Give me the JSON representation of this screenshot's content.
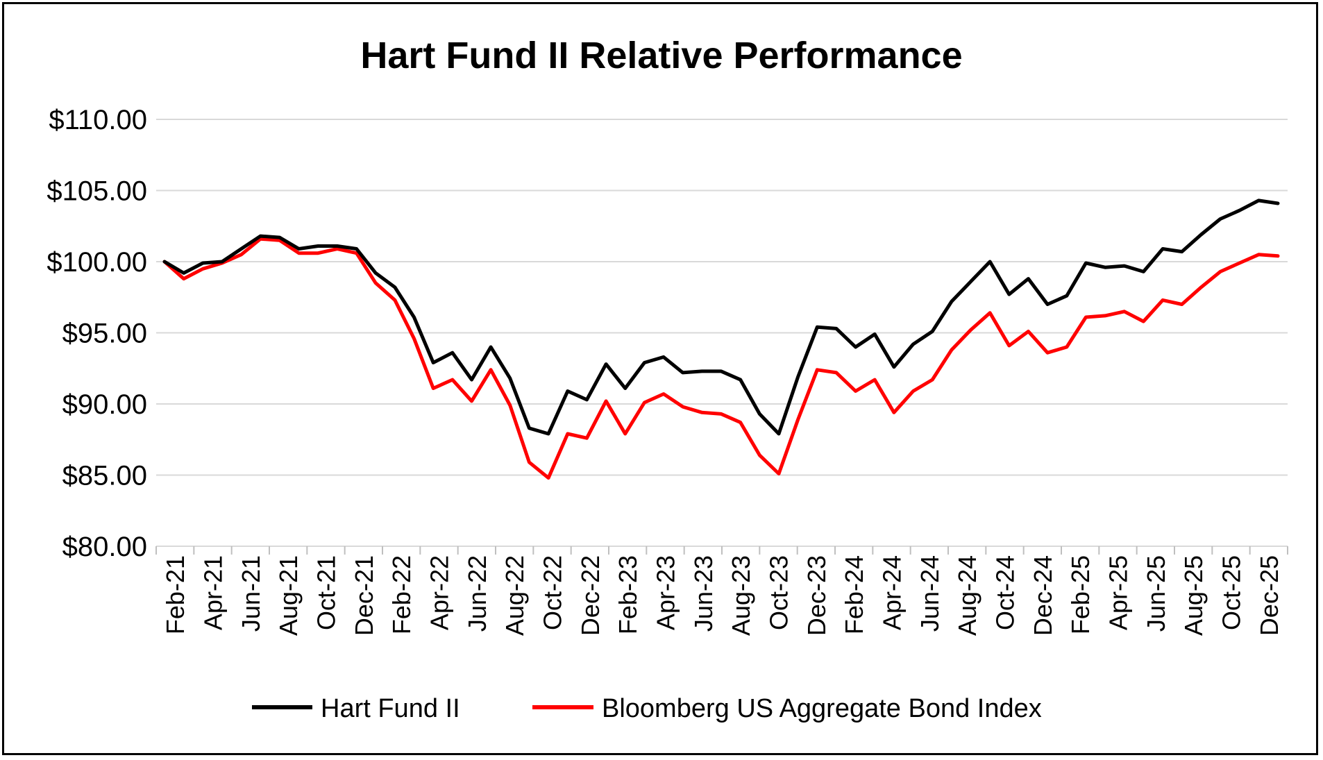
{
  "chart_data": {
    "type": "line",
    "title": "Hart Fund II Relative Performance",
    "xlabel": "",
    "ylabel": "",
    "ylim": [
      80,
      110
    ],
    "ytick_values": [
      80,
      85,
      90,
      95,
      100,
      105,
      110
    ],
    "ytick_labels": [
      "$80.00",
      "$85.00",
      "$90.00",
      "$95.00",
      "$100.00",
      "$105.00",
      "$110.00"
    ],
    "x": [
      "Feb-21",
      "Mar-21",
      "Apr-21",
      "May-21",
      "Jun-21",
      "Jul-21",
      "Aug-21",
      "Sep-21",
      "Oct-21",
      "Nov-21",
      "Dec-21",
      "Jan-22",
      "Feb-22",
      "Mar-22",
      "Apr-22",
      "May-22",
      "Jun-22",
      "Jul-22",
      "Aug-22",
      "Sep-22",
      "Oct-22",
      "Nov-22",
      "Dec-22",
      "Jan-23",
      "Feb-23",
      "Mar-23",
      "Apr-23",
      "May-23",
      "Jun-23",
      "Jul-23",
      "Aug-23",
      "Sep-23",
      "Oct-23",
      "Nov-23",
      "Dec-23",
      "Jan-24",
      "Feb-24",
      "Mar-24",
      "Apr-24",
      "May-24",
      "Jun-24",
      "Jul-24",
      "Aug-24",
      "Sep-24",
      "Oct-24",
      "Nov-24",
      "Dec-24",
      "Jan-25",
      "Feb-25",
      "Mar-25",
      "Apr-25",
      "May-25",
      "Jun-25",
      "Jul-25",
      "Aug-25",
      "Sep-25",
      "Oct-25",
      "Nov-25",
      "Dec-25"
    ],
    "xtick_labels": [
      "Feb-21",
      "Apr-21",
      "Jun-21",
      "Aug-21",
      "Oct-21",
      "Dec-21",
      "Feb-22",
      "Apr-22",
      "Jun-22",
      "Aug-22",
      "Oct-22",
      "Dec-22",
      "Feb-23",
      "Apr-23",
      "Jun-23",
      "Aug-23",
      "Oct-23",
      "Dec-23",
      "Feb-24",
      "Apr-24",
      "Jun-24",
      "Aug-24",
      "Oct-24",
      "Dec-24",
      "Feb-25",
      "Apr-25",
      "Jun-25",
      "Aug-25",
      "Oct-25",
      "Dec-25"
    ],
    "series": [
      {
        "name": "Hart Fund II",
        "color": "#000000",
        "values": [
          100.0,
          99.2,
          99.9,
          100.0,
          100.9,
          101.8,
          101.7,
          100.9,
          101.1,
          101.1,
          100.9,
          99.2,
          98.2,
          96.1,
          92.9,
          93.6,
          91.7,
          94.0,
          91.8,
          88.3,
          87.9,
          90.9,
          90.3,
          92.8,
          91.1,
          92.9,
          93.3,
          92.2,
          92.3,
          92.3,
          91.7,
          89.3,
          87.9,
          91.9,
          95.4,
          95.3,
          94.0,
          94.9,
          92.6,
          94.2,
          95.1,
          97.2,
          98.6,
          100.0,
          97.7,
          98.8,
          97.0,
          97.6,
          99.9,
          99.6,
          99.7,
          99.3,
          100.9,
          100.7,
          101.9,
          103.0,
          103.6,
          104.3,
          104.1
        ]
      },
      {
        "name": "Bloomberg US Aggregate Bond Index",
        "color": "#ff0000",
        "values": [
          100.0,
          98.8,
          99.5,
          99.9,
          100.5,
          101.6,
          101.5,
          100.6,
          100.6,
          100.9,
          100.6,
          98.5,
          97.3,
          94.6,
          91.1,
          91.7,
          90.2,
          92.4,
          89.9,
          85.9,
          84.8,
          87.9,
          87.6,
          90.2,
          87.9,
          90.1,
          90.7,
          89.8,
          89.4,
          89.3,
          88.7,
          86.4,
          85.1,
          88.9,
          92.4,
          92.2,
          90.9,
          91.7,
          89.4,
          90.9,
          91.7,
          93.8,
          95.2,
          96.4,
          94.1,
          95.1,
          93.6,
          94.0,
          96.1,
          96.2,
          96.5,
          95.8,
          97.3,
          97.0,
          98.2,
          99.3,
          99.9,
          100.5,
          100.4
        ]
      }
    ],
    "grid": true,
    "legend_position": "bottom"
  }
}
